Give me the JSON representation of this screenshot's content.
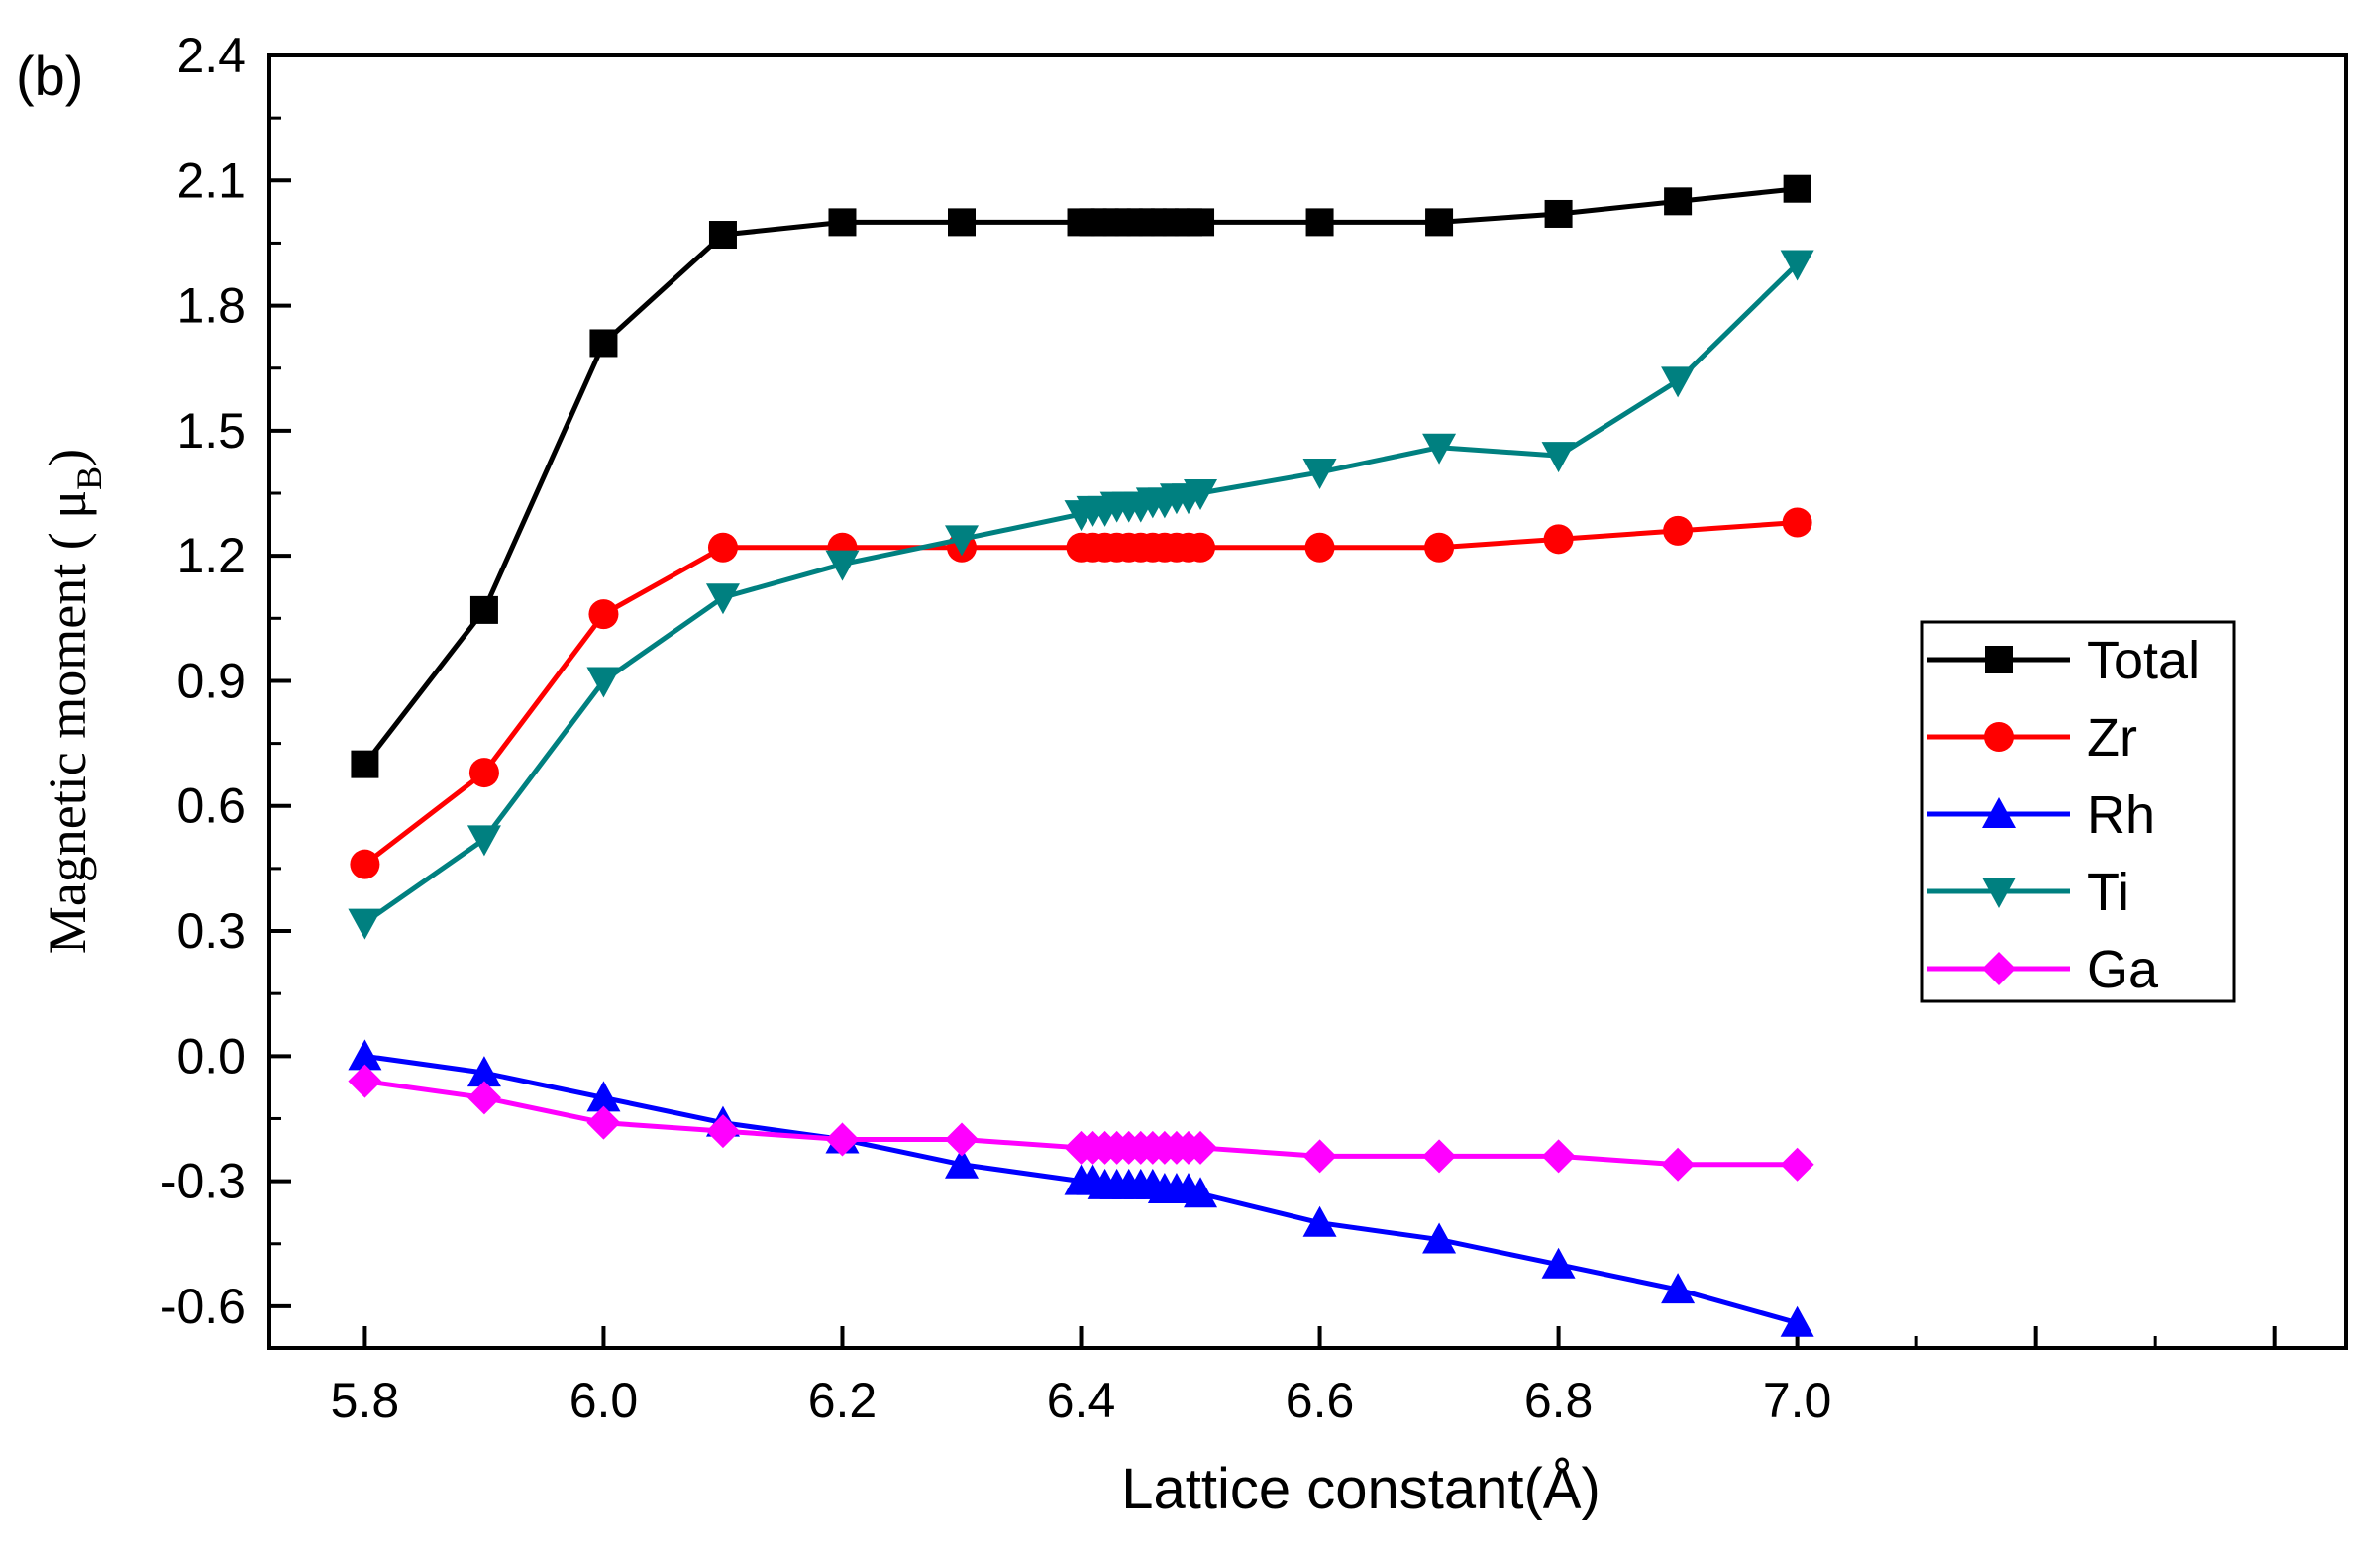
{
  "panel_label": "(b)",
  "chart_data": {
    "type": "line",
    "title": "",
    "xlabel": "Lattice constant(Å)",
    "ylabel": "Magnetic moment ( μB)",
    "ylabel_main": "Magnetic moment ( ",
    "ylabel_mu": "μ",
    "ylabel_sub": "B",
    "ylabel_close": ")",
    "xlim": [
      5.72,
      7.46
    ],
    "ylim": [
      -0.7,
      2.4
    ],
    "xticks": [
      5.8,
      6.0,
      6.2,
      6.4,
      6.6,
      6.8,
      7.0
    ],
    "xtick_labels": [
      "5.8",
      "6.0",
      "6.2",
      "6.4",
      "6.6",
      "6.8",
      "7.0"
    ],
    "yticks": [
      -0.6,
      -0.3,
      0.0,
      0.3,
      0.6,
      0.9,
      1.2,
      1.5,
      1.8,
      2.1,
      2.4
    ],
    "ytick_labels": [
      "-0.6",
      "-0.3",
      "0.0",
      "0.3",
      "0.6",
      "0.9",
      "1.2",
      "1.5",
      "1.8",
      "2.1",
      "2.4"
    ],
    "grid": false,
    "legend_position": "right",
    "x": [
      5.8,
      5.9,
      6.0,
      6.1,
      6.2,
      6.3,
      6.4,
      6.41,
      6.42,
      6.43,
      6.44,
      6.45,
      6.46,
      6.47,
      6.48,
      6.49,
      6.5,
      6.6,
      6.7,
      6.8,
      6.9,
      7.0
    ],
    "series": [
      {
        "name": "Total",
        "color": "#000000",
        "marker": "square",
        "values": [
          0.7,
          1.07,
          1.71,
          1.97,
          2.0,
          2.0,
          2.0,
          2.0,
          2.0,
          2.0,
          2.0,
          2.0,
          2.0,
          2.0,
          2.0,
          2.0,
          2.0,
          2.0,
          2.0,
          2.02,
          2.05,
          2.08
        ]
      },
      {
        "name": "Zr",
        "color": "#ff0000",
        "marker": "circle",
        "values": [
          0.46,
          0.68,
          1.06,
          1.22,
          1.22,
          1.22,
          1.22,
          1.22,
          1.22,
          1.22,
          1.22,
          1.22,
          1.22,
          1.22,
          1.22,
          1.22,
          1.22,
          1.22,
          1.22,
          1.24,
          1.26,
          1.28
        ]
      },
      {
        "name": "Rh",
        "color": "#0000ff",
        "marker": "triangle-up",
        "values": [
          0.0,
          -0.04,
          -0.1,
          -0.16,
          -0.2,
          -0.26,
          -0.3,
          -0.3,
          -0.31,
          -0.31,
          -0.31,
          -0.31,
          -0.31,
          -0.32,
          -0.32,
          -0.32,
          -0.33,
          -0.4,
          -0.44,
          -0.5,
          -0.56,
          -0.64
        ]
      },
      {
        "name": "Ti",
        "color": "#008080",
        "marker": "triangle-down",
        "values": [
          0.32,
          0.52,
          0.9,
          1.1,
          1.18,
          1.24,
          1.3,
          1.31,
          1.31,
          1.32,
          1.32,
          1.32,
          1.33,
          1.33,
          1.34,
          1.34,
          1.35,
          1.4,
          1.46,
          1.44,
          1.62,
          1.9
        ]
      },
      {
        "name": "Ga",
        "color": "#ff00ff",
        "marker": "diamond",
        "values": [
          -0.06,
          -0.1,
          -0.16,
          -0.18,
          -0.2,
          -0.2,
          -0.22,
          -0.22,
          -0.22,
          -0.22,
          -0.22,
          -0.22,
          -0.22,
          -0.22,
          -0.22,
          -0.22,
          -0.22,
          -0.24,
          -0.24,
          -0.24,
          -0.26,
          -0.26
        ]
      }
    ]
  }
}
